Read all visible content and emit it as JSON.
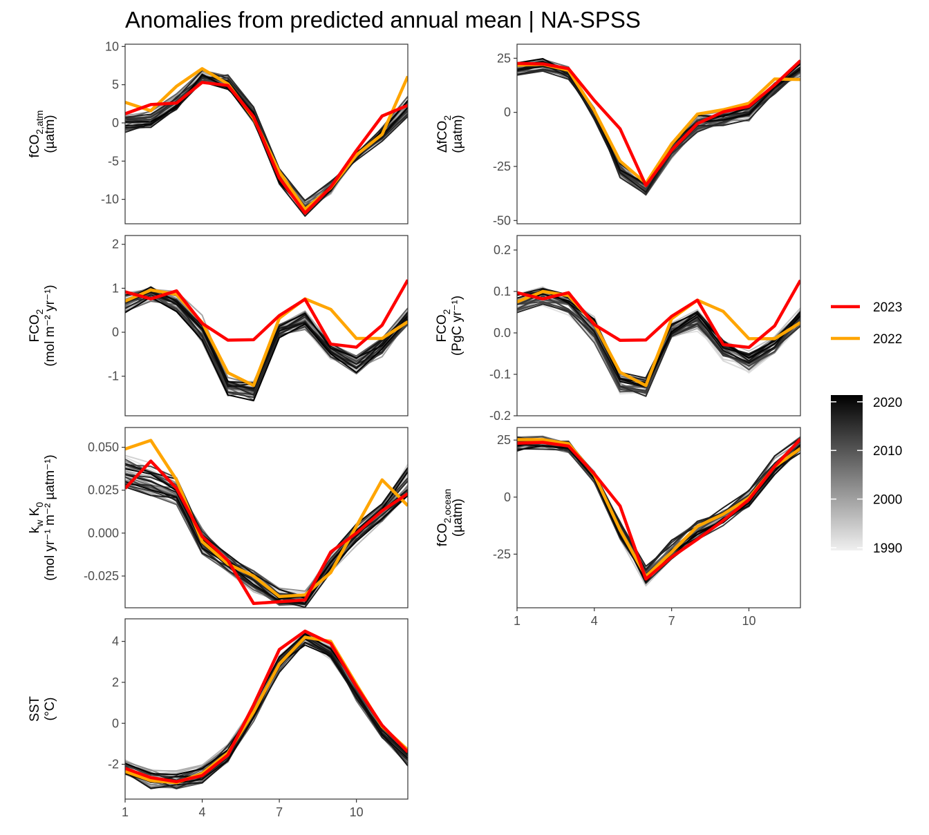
{
  "title": "Anomalies from predicted annual mean | NA-SPSS",
  "chart_data": [
    {
      "type": "line",
      "id": "fco2atm",
      "ylabel_main": "fCO",
      "ylabel_sub": "2,atm",
      "ylabel_line2": "(µatm)",
      "x": [
        1,
        2,
        3,
        4,
        5,
        6,
        7,
        8,
        9,
        10,
        11,
        12
      ],
      "xlim": [
        1,
        12
      ],
      "ylim": [
        -13.2,
        10.3
      ],
      "yticks": [
        10,
        5,
        0,
        -5,
        -10
      ],
      "ytick_labels": [
        "10",
        "5",
        "0",
        "-5",
        "-10"
      ],
      "series": [
        {
          "name": "2023",
          "color": "#ff0000",
          "values": [
            1.2,
            2.4,
            2.6,
            5.3,
            4.9,
            0.8,
            -7.2,
            -11.8,
            -8.4,
            -3.6,
            0.9,
            2.3
          ]
        },
        {
          "name": "2022",
          "color": "#ffa500",
          "values": [
            2.7,
            1.6,
            4.8,
            7.1,
            5.1,
            0.6,
            -6.4,
            -11.3,
            -8.5,
            -4.2,
            -1.5,
            6.1
          ]
        }
      ],
      "background_envelope": [
        [
          0.5,
          0.8,
          3.3,
          6.2,
          5.6,
          1.6,
          -6.8,
          -10.8,
          -8.2,
          -4.6,
          -1.8,
          1.2
        ],
        [
          -0.4,
          -0.2,
          2.2,
          5.8,
          4.8,
          0.8,
          -7.4,
          -11.5,
          -8.8,
          -4.2,
          -1.1,
          2.8
        ]
      ]
    },
    {
      "type": "line",
      "id": "dfco2",
      "ylabel_main": "ΔfCO",
      "ylabel_sub": "2",
      "ylabel_line2": "(µatm)",
      "x": [
        1,
        2,
        3,
        4,
        5,
        6,
        7,
        8,
        9,
        10,
        11,
        12
      ],
      "xlim": [
        1,
        12
      ],
      "ylim": [
        -51.5,
        31.5
      ],
      "yticks": [
        25,
        0,
        -25,
        -50
      ],
      "ytick_labels": [
        "25",
        "0",
        "-25",
        "-50"
      ],
      "series": [
        {
          "name": "2023",
          "color": "#ff0000",
          "values": [
            22.6,
            22.4,
            20.2,
            5.5,
            -7.6,
            -33.8,
            -17.5,
            -5.2,
            0.2,
            2.8,
            12.7,
            23.9
          ]
        },
        {
          "name": "2022",
          "color": "#ffa500",
          "values": [
            21.8,
            22.2,
            19.4,
            0.8,
            -22.5,
            -32.8,
            -14.6,
            -0.8,
            1.2,
            4.2,
            15.4,
            15.2
          ]
        }
      ],
      "background_envelope": [
        [
          19.5,
          20.5,
          17.5,
          -1.0,
          -27.5,
          -36.5,
          -19.0,
          -6.5,
          -4.0,
          -1.0,
          10.5,
          19.0
        ],
        [
          21.5,
          22.5,
          19.0,
          0.5,
          -25.0,
          -34.0,
          -15.5,
          -3.5,
          -1.5,
          1.5,
          13.0,
          21.0
        ]
      ]
    },
    {
      "type": "line",
      "id": "fco2flux",
      "ylabel_main": "FCO",
      "ylabel_sub": "2",
      "ylabel_line2": "(mol m⁻² yr⁻¹)",
      "x": [
        1,
        2,
        3,
        4,
        5,
        6,
        7,
        8,
        9,
        10,
        11,
        12
      ],
      "xlim": [
        1,
        12
      ],
      "ylim": [
        -1.9,
        2.2
      ],
      "yticks": [
        2,
        1,
        0,
        -1
      ],
      "ytick_labels": [
        "2",
        "1",
        "0",
        "-1"
      ],
      "series": [
        {
          "name": "2023",
          "color": "#ff0000",
          "values": [
            0.92,
            0.76,
            0.94,
            0.2,
            -0.18,
            -0.17,
            0.38,
            0.75,
            -0.27,
            -0.34,
            0.16,
            1.19
          ]
        },
        {
          "name": "2022",
          "color": "#ffa500",
          "values": [
            0.71,
            0.96,
            0.86,
            0.22,
            -0.92,
            -1.21,
            0.32,
            0.76,
            0.52,
            -0.14,
            -0.14,
            0.24
          ]
        }
      ],
      "background_envelope": [
        [
          0.8,
          1.0,
          0.8,
          0.2,
          -1.1,
          -1.2,
          0.1,
          0.4,
          -0.3,
          -0.6,
          -0.2,
          0.5
        ],
        [
          0.6,
          0.8,
          0.6,
          -0.1,
          -1.3,
          -1.4,
          0.0,
          0.2,
          -0.5,
          -0.8,
          -0.4,
          0.3
        ]
      ]
    },
    {
      "type": "line",
      "id": "fco2pg",
      "ylabel_main": "FCO",
      "ylabel_sub": "2",
      "ylabel_line2": "(PgC yr⁻¹)",
      "x": [
        1,
        2,
        3,
        4,
        5,
        6,
        7,
        8,
        9,
        10,
        11,
        12
      ],
      "xlim": [
        1,
        12
      ],
      "ylim": [
        -0.2,
        0.235
      ],
      "yticks": [
        0.2,
        0.1,
        0.0,
        -0.1,
        -0.2
      ],
      "ytick_labels": [
        "0.2",
        "0.1",
        "0.0",
        "-0.1",
        "-0.2"
      ],
      "series": [
        {
          "name": "2023",
          "color": "#ff0000",
          "values": [
            0.097,
            0.082,
            0.097,
            0.02,
            -0.018,
            -0.017,
            0.04,
            0.079,
            -0.028,
            -0.035,
            0.017,
            0.127
          ]
        },
        {
          "name": "2022",
          "color": "#ffa500",
          "values": [
            0.075,
            0.1,
            0.09,
            0.022,
            -0.095,
            -0.127,
            0.034,
            0.079,
            0.052,
            -0.014,
            -0.014,
            0.025
          ]
        }
      ],
      "background_envelope": [
        [
          0.08,
          0.1,
          0.08,
          0.02,
          -0.11,
          -0.12,
          0.01,
          0.04,
          -0.03,
          -0.06,
          -0.02,
          0.05
        ],
        [
          0.06,
          0.08,
          0.06,
          -0.01,
          -0.13,
          -0.14,
          0.0,
          0.02,
          -0.05,
          -0.08,
          -0.04,
          0.03
        ]
      ]
    },
    {
      "type": "line",
      "id": "kwk0",
      "ylabel_main": "k",
      "ylabel_sub": "w",
      "ylabel_main2": " K",
      "ylabel_sub2": "0",
      "ylabel_line2": "(mol yr⁻¹ m⁻² µatm⁻¹)",
      "x": [
        1,
        2,
        3,
        4,
        5,
        6,
        7,
        8,
        9,
        10,
        11,
        12
      ],
      "xlim": [
        1,
        12
      ],
      "ylim": [
        -0.0435,
        0.0615
      ],
      "yticks": [
        0.05,
        0.025,
        0.0,
        -0.025
      ],
      "ytick_labels": [
        "0.050",
        "0.025",
        "0.000",
        "-0.025"
      ],
      "series": [
        {
          "name": "2023",
          "color": "#ff0000",
          "values": [
            0.026,
            0.042,
            0.026,
            -0.002,
            -0.016,
            -0.041,
            -0.04,
            -0.039,
            -0.011,
            0.0,
            0.013,
            0.023
          ]
        },
        {
          "name": "2022",
          "color": "#ffa500",
          "values": [
            0.049,
            0.054,
            0.031,
            -0.005,
            -0.018,
            -0.025,
            -0.037,
            -0.036,
            -0.023,
            0.004,
            0.031,
            0.016
          ]
        }
      ],
      "background_envelope": [
        [
          0.04,
          0.035,
          0.028,
          0.0,
          -0.015,
          -0.025,
          -0.035,
          -0.036,
          -0.015,
          0.003,
          0.015,
          0.035
        ],
        [
          0.03,
          0.025,
          0.02,
          -0.008,
          -0.02,
          -0.03,
          -0.04,
          -0.04,
          -0.02,
          -0.003,
          0.01,
          0.025
        ]
      ]
    },
    {
      "type": "line",
      "id": "fco2ocean",
      "ylabel_main": "fCO",
      "ylabel_sub": "2,ocean",
      "ylabel_line2": "(µatm)",
      "x": [
        1,
        2,
        3,
        4,
        5,
        6,
        7,
        8,
        9,
        10,
        11,
        12
      ],
      "xlim": [
        1,
        12
      ],
      "ylim": [
        -48.5,
        30.5
      ],
      "yticks": [
        25,
        0,
        -25
      ],
      "ytick_labels": [
        "25",
        "0",
        "-25"
      ],
      "xticks": [
        1,
        4,
        7,
        10
      ],
      "xtick_labels": [
        "1",
        "4",
        "7",
        "10"
      ],
      "series": [
        {
          "name": "2023",
          "color": "#ff0000",
          "values": [
            23.6,
            24.0,
            22.4,
            10.2,
            -3.9,
            -35.9,
            -26.3,
            -18.5,
            -10.3,
            -1.1,
            13.5,
            25.4
          ]
        },
        {
          "name": "2022",
          "color": "#ffa500",
          "values": [
            25.2,
            25.2,
            23.4,
            9.8,
            -14.4,
            -34.8,
            -24.1,
            -12.8,
            -7.5,
            -0.4,
            13.4,
            21.3
          ]
        }
      ],
      "background_envelope": [
        [
          22.0,
          23.0,
          21.0,
          8.0,
          -16.0,
          -36.0,
          -25.0,
          -17.0,
          -10.0,
          -2.0,
          12.0,
          21.0
        ],
        [
          24.0,
          24.5,
          22.5,
          10.0,
          -13.5,
          -33.0,
          -22.0,
          -13.5,
          -7.0,
          0.5,
          15.0,
          23.5
        ]
      ]
    },
    {
      "type": "line",
      "id": "sst",
      "ylabel_main": "SST",
      "ylabel_sub": "",
      "ylabel_line2": "(°C)",
      "x": [
        1,
        2,
        3,
        4,
        5,
        6,
        7,
        8,
        9,
        10,
        11,
        12
      ],
      "xlim": [
        1,
        12
      ],
      "ylim": [
        -3.7,
        5.1
      ],
      "yticks": [
        4,
        2,
        0,
        -2
      ],
      "ytick_labels": [
        "4",
        "2",
        "0",
        "-2"
      ],
      "xticks": [
        1,
        4,
        7,
        10
      ],
      "xtick_labels": [
        "1",
        "4",
        "7",
        "10"
      ],
      "series": [
        {
          "name": "2023",
          "color": "#ff0000",
          "values": [
            -2.2,
            -2.65,
            -2.85,
            -2.55,
            -1.55,
            0.9,
            3.6,
            4.5,
            3.9,
            1.8,
            -0.1,
            -1.4
          ]
        },
        {
          "name": "2022",
          "color": "#ffa500",
          "values": [
            -2.35,
            -2.8,
            -2.9,
            -2.45,
            -1.45,
            0.55,
            2.9,
            4.2,
            4.0,
            1.9,
            -0.15,
            -1.3
          ]
        }
      ],
      "background_envelope": [
        [
          -2.0,
          -2.5,
          -2.6,
          -2.3,
          -1.3,
          0.6,
          3.2,
          4.3,
          3.7,
          1.6,
          -0.3,
          -1.5
        ],
        [
          -2.4,
          -2.9,
          -3.0,
          -2.7,
          -1.7,
          0.3,
          2.8,
          4.0,
          3.4,
          1.3,
          -0.6,
          -1.8
        ]
      ]
    }
  ],
  "legend": {
    "lines": [
      {
        "label": "2023",
        "color": "#ff0000"
      },
      {
        "label": "2022",
        "color": "#ffa500"
      }
    ],
    "colorbar": {
      "ticks": [
        2020,
        2010,
        2000,
        1990
      ],
      "tick_labels": [
        "2020",
        "2010",
        "2000",
        "1990"
      ],
      "range": [
        1990,
        2021
      ],
      "color_low": "#f0f0f0",
      "color_high": "#000000"
    }
  }
}
